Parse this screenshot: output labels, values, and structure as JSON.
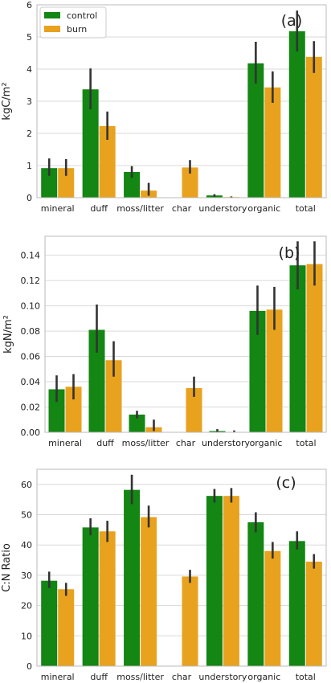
{
  "colors": {
    "control": "#138613",
    "burn": "#E8A21E",
    "error_bar": "#333333",
    "grid": "#d9d9d9",
    "frame": "#bbbbbb"
  },
  "legend": {
    "entries": [
      "control",
      "burn"
    ],
    "placement": "top-left",
    "panel": 0
  },
  "chart_data": [
    {
      "type": "bar",
      "panel_label": "(a)",
      "ylabel": "kgC/m²",
      "xlabel": "",
      "ylim": [
        0,
        6
      ],
      "yticks": [
        0,
        1,
        2,
        3,
        4,
        5,
        6
      ],
      "grid": true,
      "categories": [
        "mineral",
        "duff",
        "moss/litter",
        "char",
        "understory",
        "organic",
        "total"
      ],
      "series": [
        {
          "name": "control",
          "values": [
            0.92,
            3.37,
            0.8,
            0.0,
            0.07,
            4.18,
            5.18
          ],
          "err_low": [
            0.68,
            2.75,
            0.62,
            0.0,
            0.03,
            3.55,
            4.55
          ],
          "err_high": [
            1.22,
            4.02,
            0.98,
            0.0,
            0.11,
            4.85,
            5.82
          ]
        },
        {
          "name": "burn",
          "values": [
            0.92,
            2.23,
            0.22,
            0.94,
            0.02,
            3.43,
            4.38
          ],
          "err_low": [
            0.68,
            1.8,
            0.06,
            0.75,
            0.0,
            2.95,
            3.88
          ],
          "err_high": [
            1.2,
            2.68,
            0.46,
            1.17,
            0.04,
            3.93,
            4.87
          ]
        }
      ]
    },
    {
      "type": "bar",
      "panel_label": "(b)",
      "ylabel": "kgN/m²",
      "xlabel": "",
      "ylim": [
        0,
        0.155
      ],
      "yticks": [
        "0.00",
        "0.02",
        "0.04",
        "0.06",
        "0.08",
        "0.10",
        "0.12",
        "0.14"
      ],
      "grid": true,
      "categories": [
        "mineral",
        "duff",
        "moss/litter",
        "char",
        "understory",
        "organic",
        "total"
      ],
      "series": [
        {
          "name": "control",
          "values": [
            0.034,
            0.081,
            0.014,
            0.0,
            0.001,
            0.096,
            0.132
          ],
          "err_low": [
            0.024,
            0.063,
            0.011,
            0.0,
            0.0,
            0.077,
            0.113
          ],
          "err_high": [
            0.045,
            0.101,
            0.017,
            0.0,
            0.0025,
            0.116,
            0.151
          ]
        },
        {
          "name": "burn",
          "values": [
            0.036,
            0.057,
            0.004,
            0.035,
            0.0003,
            0.097,
            0.133
          ],
          "err_low": [
            0.026,
            0.044,
            0.001,
            0.028,
            0.0,
            0.081,
            0.116
          ],
          "err_high": [
            0.046,
            0.072,
            0.01,
            0.044,
            0.0015,
            0.115,
            0.151
          ]
        }
      ]
    },
    {
      "type": "bar",
      "panel_label": "(c)",
      "ylabel": "C:N Ratio",
      "xlabel": "",
      "ylim": [
        0,
        65
      ],
      "yticks": [
        0,
        10,
        20,
        30,
        40,
        50,
        60
      ],
      "grid": true,
      "categories": [
        "mineral",
        "duff",
        "moss/litter",
        "char",
        "understory",
        "organic",
        "total"
      ],
      "series": [
        {
          "name": "control",
          "values": [
            28.2,
            45.8,
            58.2,
            null,
            56.2,
            47.5,
            41.3
          ],
          "err_low": [
            25.8,
            43.2,
            53.5,
            null,
            54.0,
            44.2,
            38.5
          ],
          "err_high": [
            31.2,
            48.8,
            63.2,
            null,
            58.5,
            50.8,
            44.5
          ]
        },
        {
          "name": "burn",
          "values": [
            25.4,
            44.5,
            49.2,
            29.6,
            56.2,
            38.0,
            34.5
          ],
          "err_low": [
            23.2,
            41.0,
            45.8,
            27.5,
            54.0,
            35.5,
            32.2
          ],
          "err_high": [
            27.5,
            48.0,
            53.0,
            31.8,
            58.8,
            41.0,
            37.0
          ]
        }
      ]
    }
  ]
}
